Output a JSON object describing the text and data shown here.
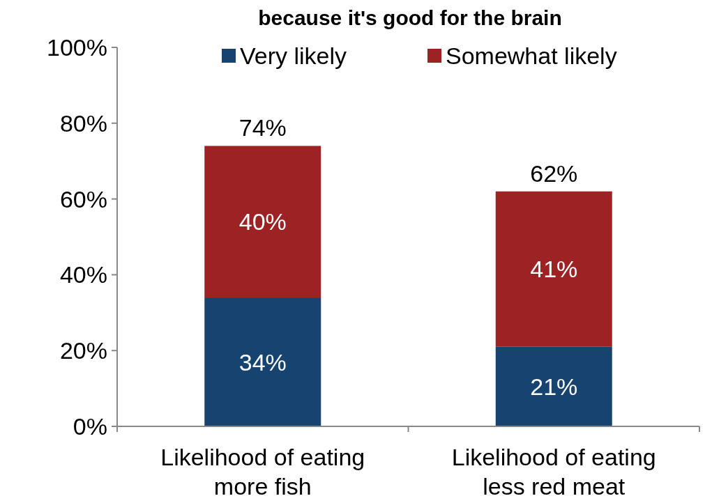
{
  "chart_data": {
    "type": "bar",
    "title": "because it's good for the brain",
    "stacked": true,
    "categories": [
      "Likelihood of eating more fish",
      "Likelihood of eating less red meat"
    ],
    "series": [
      {
        "name": "Very likely",
        "color": "#174371",
        "values": [
          34,
          21
        ],
        "value_labels": [
          "34%",
          "21%"
        ]
      },
      {
        "name": "Somewhat likely",
        "color": "#9c2224",
        "values": [
          40,
          41
        ],
        "value_labels": [
          "40%",
          "41%"
        ]
      }
    ],
    "ylim": [
      0,
      100
    ],
    "yticks": [
      {
        "value": 0,
        "label": "0%"
      },
      {
        "value": 20,
        "label": "20%"
      },
      {
        "value": 40,
        "label": "40%"
      },
      {
        "value": 60,
        "label": "60%"
      },
      {
        "value": 80,
        "label": "80%"
      },
      {
        "value": 100,
        "label": "100%"
      }
    ],
    "totals": [
      "74%",
      "62%"
    ],
    "legend": "top",
    "grid": false
  }
}
